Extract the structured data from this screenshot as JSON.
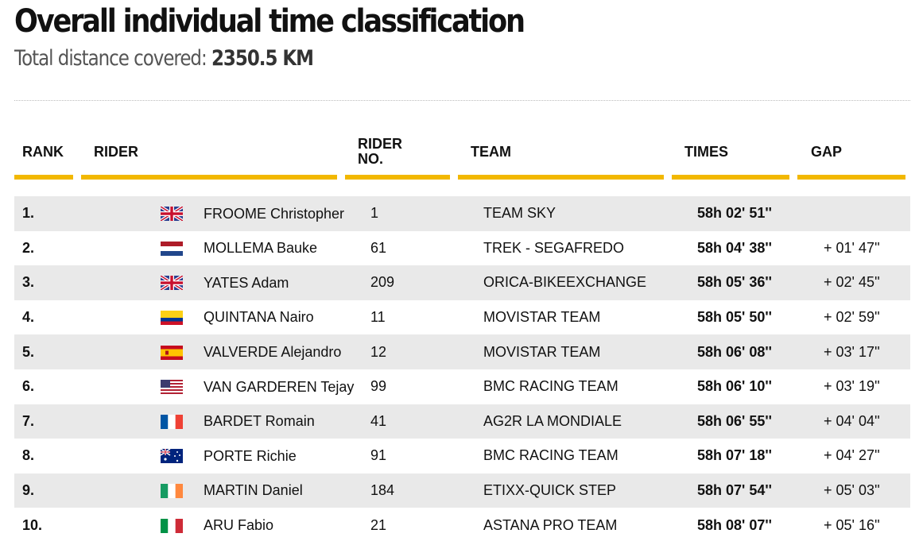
{
  "header": {
    "title": "Overall individual time classification",
    "subtitle_label": "Total distance covered: ",
    "distance": "2350.5 KM"
  },
  "columns": {
    "rank": "RANK",
    "rider": "RIDER",
    "rider_no_line1": "RIDER",
    "rider_no_line2": "NO.",
    "team": "TEAM",
    "times": "TIMES",
    "gap": "GAP"
  },
  "accent_color": "#f2b800",
  "rows": [
    {
      "rank": "1.",
      "flag": "gb-flag-icon",
      "name": "FROOME Christopher",
      "no": "1",
      "team": "TEAM SKY",
      "time": "58h 02' 51''",
      "gap": ""
    },
    {
      "rank": "2.",
      "flag": "nl-flag-icon",
      "name": "MOLLEMA Bauke",
      "no": "61",
      "team": "TREK - SEGAFREDO",
      "time": "58h 04' 38''",
      "gap": "+ 01' 47''"
    },
    {
      "rank": "3.",
      "flag": "gb-flag-icon",
      "name": "YATES Adam",
      "no": "209",
      "team": "ORICA-BIKEEXCHANGE",
      "time": "58h 05' 36''",
      "gap": "+ 02' 45''"
    },
    {
      "rank": "4.",
      "flag": "co-flag-icon",
      "name": "QUINTANA Nairo",
      "no": "11",
      "team": "MOVISTAR TEAM",
      "time": "58h 05' 50''",
      "gap": "+ 02' 59''"
    },
    {
      "rank": "5.",
      "flag": "es-flag-icon",
      "name": "VALVERDE Alejandro",
      "no": "12",
      "team": "MOVISTAR TEAM",
      "time": "58h 06' 08''",
      "gap": "+ 03' 17''"
    },
    {
      "rank": "6.",
      "flag": "us-flag-icon",
      "name": "VAN GARDEREN Tejay",
      "no": "99",
      "team": "BMC RACING TEAM",
      "time": "58h 06' 10''",
      "gap": "+ 03' 19''"
    },
    {
      "rank": "7.",
      "flag": "fr-flag-icon",
      "name": "BARDET Romain",
      "no": "41",
      "team": "AG2R LA MONDIALE",
      "time": "58h 06' 55''",
      "gap": "+ 04' 04''"
    },
    {
      "rank": "8.",
      "flag": "au-flag-icon",
      "name": "PORTE Richie",
      "no": "91",
      "team": "BMC RACING TEAM",
      "time": "58h 07' 18''",
      "gap": "+ 04' 27''"
    },
    {
      "rank": "9.",
      "flag": "ie-flag-icon",
      "name": "MARTIN Daniel",
      "no": "184",
      "team": "ETIXX-QUICK STEP",
      "time": "58h 07' 54''",
      "gap": "+ 05' 03''"
    },
    {
      "rank": "10.",
      "flag": "it-flag-icon",
      "name": "ARU Fabio",
      "no": "21",
      "team": "ASTANA PRO TEAM",
      "time": "58h 08' 07''",
      "gap": "+ 05' 16''"
    }
  ]
}
